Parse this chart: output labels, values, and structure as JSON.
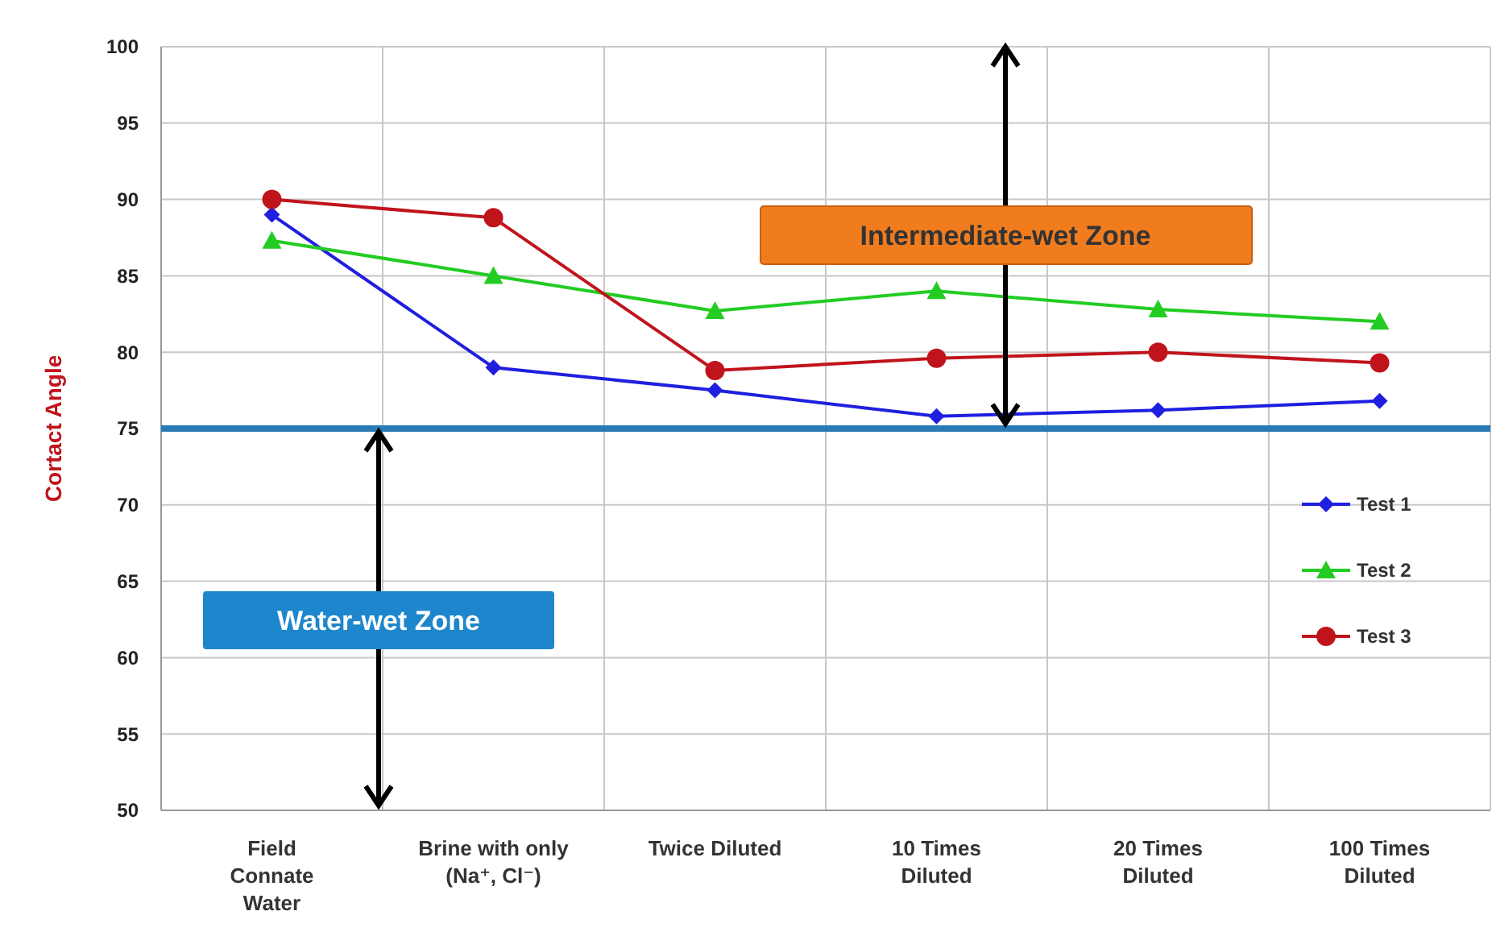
{
  "chart_data": {
    "type": "line",
    "ylabel": "Cortact Angle",
    "categories": [
      "Field\nConnate\nWater",
      "Brine with only\n(Na⁺, Cl⁻)",
      "Twice Diluted",
      "10 Times\nDiluted",
      "20 Times\nDiluted",
      "100 Times\nDiluted"
    ],
    "series": [
      {
        "name": "Test 1",
        "color": "#1f1fe0",
        "marker": "diamond",
        "values": [
          89,
          79,
          77.5,
          75.8,
          76.2,
          76.8
        ]
      },
      {
        "name": "Test 2",
        "color": "#22cc22",
        "marker": "triangle",
        "values": [
          87.3,
          85,
          82.7,
          84,
          82.8,
          82
        ]
      },
      {
        "name": "Test 3",
        "color": "#c0141c",
        "marker": "circle",
        "values": [
          90,
          88.8,
          78.8,
          79.6,
          80,
          79.3
        ]
      }
    ],
    "ylim": [
      50,
      100
    ],
    "yticks": [
      50,
      55,
      60,
      65,
      70,
      75,
      80,
      85,
      90,
      95,
      100
    ],
    "grid": true,
    "legend": "right",
    "ref_lines": [
      {
        "axis": "y",
        "value": 75,
        "color": "#2a7ab8"
      }
    ],
    "annotations": [
      "Intermediate-wet Zone",
      "Water-wet Zone"
    ]
  }
}
